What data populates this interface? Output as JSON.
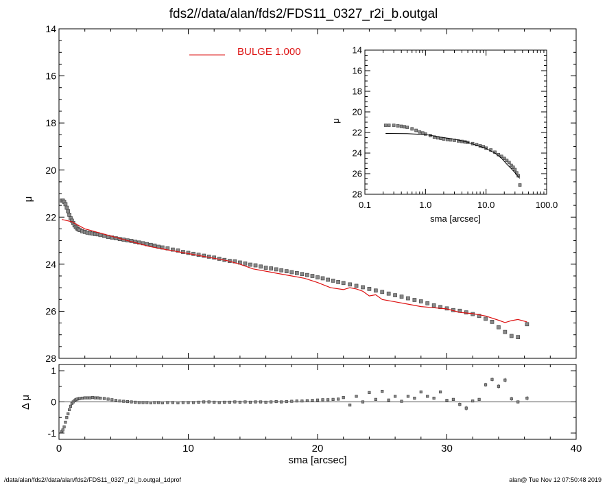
{
  "title": "fds2//data/alan/fds2/FDS11_0327_r2i_b.outgal",
  "footer": {
    "left": "/data/alan/fds2//data/alan/fds2/FDS11_0327_r2i_b.outgal_1dprof",
    "right": "alan@  Tue Nov 12 07:50:48 2019"
  },
  "colors": {
    "axes": "#000000",
    "model": "#dd1111",
    "data": "#444444",
    "data_fill": "#888888"
  },
  "chart_data": [
    {
      "id": "main",
      "type": "scatter",
      "xlabel": "",
      "ylabel": "μ",
      "xlim": [
        0,
        40
      ],
      "ylim": [
        28,
        14
      ],
      "yticks": [
        14,
        16,
        18,
        20,
        22,
        24,
        26,
        28
      ],
      "legend": {
        "label": "BULGE",
        "value": "1.000",
        "position": "top-left"
      },
      "series": [
        {
          "name": "data",
          "kind": "points",
          "x": [
            0.22,
            0.3,
            0.4,
            0.5,
            0.6,
            0.7,
            0.8,
            0.9,
            1.0,
            1.1,
            1.2,
            1.3,
            1.4,
            1.5,
            1.6,
            1.8,
            2.0,
            2.2,
            2.4,
            2.6,
            2.8,
            3.0,
            3.2,
            3.5,
            3.8,
            4.1,
            4.4,
            4.7,
            5.0,
            5.3,
            5.6,
            5.9,
            6.2,
            6.5,
            6.8,
            7.1,
            7.4,
            7.7,
            8.0,
            8.4,
            8.8,
            9.2,
            9.6,
            10.0,
            10.4,
            10.8,
            11.2,
            11.6,
            12.0,
            12.4,
            12.8,
            13.2,
            13.6,
            14.0,
            14.4,
            14.8,
            15.2,
            15.6,
            16.0,
            16.4,
            16.8,
            17.2,
            17.6,
            18.0,
            18.4,
            18.8,
            19.2,
            19.6,
            20.0,
            20.4,
            20.8,
            21.2,
            21.6,
            22.0,
            22.5,
            23.0,
            23.5,
            24.0,
            24.5,
            25.0,
            25.5,
            26.0,
            26.5,
            27.0,
            27.5,
            28.0,
            28.5,
            29.0,
            29.5,
            30.0,
            30.5,
            31.0,
            31.5,
            32.0,
            32.5,
            33.0,
            33.5,
            34.0,
            34.5,
            35.0,
            35.5,
            36.2
          ],
          "y": [
            21.3,
            21.3,
            21.35,
            21.45,
            21.6,
            21.75,
            21.9,
            22.05,
            22.15,
            22.25,
            22.35,
            22.42,
            22.48,
            22.52,
            22.55,
            22.6,
            22.63,
            22.66,
            22.68,
            22.7,
            22.72,
            22.73,
            22.76,
            22.8,
            22.84,
            22.87,
            22.9,
            22.93,
            22.96,
            22.99,
            23.01,
            23.05,
            23.08,
            23.11,
            23.15,
            23.18,
            23.21,
            23.26,
            23.29,
            23.33,
            23.38,
            23.42,
            23.48,
            23.52,
            23.56,
            23.6,
            23.64,
            23.68,
            23.72,
            23.77,
            23.82,
            23.86,
            23.88,
            23.93,
            23.97,
            24.02,
            24.05,
            24.1,
            24.15,
            24.18,
            24.22,
            24.26,
            24.3,
            24.34,
            24.38,
            24.42,
            24.46,
            24.5,
            24.56,
            24.6,
            24.66,
            24.7,
            24.76,
            24.8,
            24.86,
            24.92,
            24.98,
            25.05,
            25.12,
            25.18,
            25.25,
            25.32,
            25.38,
            25.45,
            25.52,
            25.58,
            25.66,
            25.75,
            25.82,
            25.88,
            25.95,
            25.98,
            26.05,
            26.12,
            26.2,
            26.32,
            26.45,
            26.68,
            26.88,
            27.05,
            27.1,
            26.55
          ]
        },
        {
          "name": "BULGE",
          "kind": "line",
          "x": [
            0.22,
            1.0,
            2.0,
            3.0,
            4.0,
            5.0,
            6.0,
            7.0,
            8.0,
            9.0,
            10.0,
            11.0,
            12.0,
            13.0,
            14.0,
            15.0,
            16.0,
            17.0,
            18.0,
            19.0,
            20.0,
            21.0,
            22.0,
            22.5,
            23.0,
            23.5,
            24.0,
            24.5,
            25.0,
            26.0,
            27.0,
            28.0,
            29.0,
            30.0,
            31.0,
            32.0,
            33.0,
            34.0,
            34.5,
            35.0,
            35.5,
            36.2
          ],
          "y": [
            22.1,
            22.2,
            22.5,
            22.65,
            22.8,
            22.95,
            23.1,
            23.25,
            23.35,
            23.45,
            23.55,
            23.65,
            23.75,
            23.85,
            24.0,
            24.2,
            24.3,
            24.4,
            24.5,
            24.6,
            24.78,
            25.0,
            25.08,
            25.0,
            25.05,
            25.15,
            25.35,
            25.3,
            25.5,
            25.6,
            25.7,
            25.8,
            25.85,
            25.9,
            26.05,
            26.1,
            26.2,
            26.38,
            26.48,
            26.4,
            26.35,
            26.45
          ]
        }
      ]
    },
    {
      "id": "residual",
      "type": "scatter",
      "xlabel": "sma [arcsec]",
      "ylabel": "Δ μ",
      "xlim": [
        0,
        40
      ],
      "ylim": [
        -1.2,
        1.2
      ],
      "xticks": [
        0,
        10,
        20,
        30,
        40
      ],
      "yticks": [
        -1,
        0,
        1
      ],
      "zero_line": true,
      "series": [
        {
          "name": "residual",
          "kind": "points",
          "x": [
            0.22,
            0.3,
            0.4,
            0.5,
            0.6,
            0.7,
            0.8,
            0.9,
            1.0,
            1.1,
            1.2,
            1.3,
            1.4,
            1.5,
            1.6,
            1.8,
            2.0,
            2.2,
            2.4,
            2.6,
            2.8,
            3.0,
            3.2,
            3.5,
            3.8,
            4.1,
            4.4,
            4.7,
            5.0,
            5.3,
            5.6,
            5.9,
            6.2,
            6.5,
            6.8,
            7.1,
            7.4,
            7.7,
            8.0,
            8.4,
            8.8,
            9.2,
            9.6,
            10.0,
            10.4,
            10.8,
            11.2,
            11.6,
            12.0,
            12.4,
            12.8,
            13.2,
            13.6,
            14.0,
            14.4,
            14.8,
            15.2,
            15.6,
            16.0,
            16.4,
            16.8,
            17.2,
            17.6,
            18.0,
            18.4,
            18.8,
            19.2,
            19.6,
            20.0,
            20.4,
            20.8,
            21.2,
            21.6,
            22.0,
            22.5,
            23.0,
            23.5,
            24.0,
            24.5,
            25.0,
            25.5,
            26.0,
            26.5,
            27.0,
            27.5,
            28.0,
            28.5,
            29.0,
            29.5,
            30.0,
            30.5,
            31.0,
            31.5,
            32.0,
            32.5,
            33.0,
            33.5,
            34.0,
            34.5,
            35.0,
            35.5,
            36.2
          ],
          "y": [
            -0.95,
            -0.9,
            -0.8,
            -0.65,
            -0.5,
            -0.38,
            -0.25,
            -0.14,
            -0.05,
            0.0,
            0.04,
            0.07,
            0.09,
            0.1,
            0.11,
            0.12,
            0.13,
            0.13,
            0.13,
            0.14,
            0.13,
            0.13,
            0.12,
            0.11,
            0.09,
            0.07,
            0.05,
            0.03,
            0.02,
            0.01,
            0.0,
            -0.01,
            -0.02,
            -0.02,
            -0.02,
            -0.03,
            -0.02,
            -0.02,
            -0.03,
            -0.02,
            -0.02,
            -0.03,
            -0.02,
            -0.02,
            -0.02,
            -0.01,
            0.0,
            0.0,
            -0.01,
            -0.02,
            -0.01,
            -0.01,
            0.0,
            -0.01,
            0.0,
            -0.01,
            0.0,
            0.0,
            -0.01,
            0.0,
            0.01,
            0.0,
            0.01,
            0.02,
            0.03,
            0.03,
            0.04,
            0.05,
            0.06,
            0.07,
            0.07,
            0.08,
            0.09,
            0.14,
            -0.1,
            0.18,
            0.0,
            0.3,
            0.08,
            0.34,
            0.06,
            0.18,
            0.02,
            0.18,
            0.12,
            0.32,
            0.18,
            0.12,
            0.32,
            0.05,
            0.08,
            -0.08,
            -0.2,
            0.03,
            0.08,
            0.55,
            0.72,
            0.5,
            0.7,
            0.1,
            0.0,
            0.12
          ],
          "err": [
            0.0,
            0.0,
            0.0,
            0.0,
            0.0,
            0.0,
            0.0,
            0.0,
            0.0,
            0.0,
            0.0,
            0.0,
            0.0,
            0.0,
            0.0,
            0.0,
            0.0,
            0.0,
            0.0,
            0.0,
            0.0,
            0.0,
            0.0,
            0.0,
            0.0,
            0.0,
            0.0,
            0.0,
            0.0,
            0.0,
            0.0,
            0.0,
            0.0,
            0.0,
            0.0,
            0.0,
            0.0,
            0.0,
            0.0,
            0.0,
            0.0,
            0.0,
            0.0,
            0.0,
            0.0,
            0.0,
            0.0,
            0.0,
            0.0,
            0.0,
            0.0,
            0.0,
            0.0,
            0.0,
            0.0,
            0.0,
            0.0,
            0.0,
            0.0,
            0.0,
            0.0,
            0.0,
            0.0,
            0.0,
            0.0,
            0.0,
            0.0,
            0.0,
            0.0,
            0.0,
            0.0,
            0.0,
            0.0,
            0.0,
            0.0,
            0.0,
            0.0,
            0.0,
            0.0,
            0.0,
            0.0,
            0.0,
            0.0,
            0.0,
            0.0,
            0.0,
            0.0,
            0.0,
            0.0,
            0.0,
            0.0,
            0.06,
            0.08,
            0.04,
            0.04,
            0.06,
            0.06,
            0.07,
            0.07,
            0.06,
            0.0,
            0.07
          ]
        }
      ]
    },
    {
      "id": "inset",
      "type": "scatter",
      "xscale": "log",
      "xlabel": "sma [arcsec]",
      "ylabel": "μ",
      "xlim": [
        0.1,
        100
      ],
      "ylim": [
        28,
        14
      ],
      "xticks": [
        0.1,
        1,
        10,
        100
      ],
      "xticklabels": [
        "0.1",
        "1.0",
        "10.0",
        "100.0"
      ],
      "yticks": [
        14,
        16,
        18,
        20,
        22,
        24,
        26,
        28
      ],
      "series": [
        {
          "name": "data",
          "kind": "points",
          "x": [
            0.22,
            0.25,
            0.3,
            0.35,
            0.4,
            0.45,
            0.5,
            0.6,
            0.7,
            0.8,
            0.9,
            1.0,
            1.2,
            1.4,
            1.6,
            1.8,
            2.0,
            2.3,
            2.6,
            3.0,
            3.5,
            4.0,
            4.5,
            5.0,
            6.0,
            7.0,
            8.0,
            9.0,
            10.0,
            12.0,
            14.0,
            16.0,
            18.0,
            20.0,
            22.0,
            24.0,
            26.0,
            28.0,
            30.0,
            32.0,
            34.0,
            36.2
          ],
          "y": [
            21.3,
            21.3,
            21.3,
            21.35,
            21.4,
            21.45,
            21.5,
            21.65,
            21.8,
            21.95,
            22.05,
            22.15,
            22.3,
            22.45,
            22.52,
            22.58,
            22.63,
            22.68,
            22.72,
            22.76,
            22.82,
            22.87,
            22.92,
            22.96,
            23.08,
            23.18,
            23.3,
            23.38,
            23.52,
            23.7,
            23.92,
            24.15,
            24.32,
            24.52,
            24.72,
            24.92,
            25.2,
            25.38,
            25.6,
            25.92,
            26.2,
            27.1
          ]
        },
        {
          "name": "BULGE",
          "kind": "line",
          "x": [
            0.22,
            0.5,
            1.0,
            2.0,
            3.0,
            5.0,
            7.0,
            10.0,
            14.0,
            18.0,
            22.0,
            26.0,
            30.0,
            34.0,
            36.2
          ],
          "y": [
            22.1,
            22.12,
            22.2,
            22.5,
            22.65,
            22.95,
            23.25,
            23.55,
            24.0,
            24.5,
            25.08,
            25.5,
            25.9,
            26.3,
            26.45
          ]
        }
      ]
    }
  ]
}
